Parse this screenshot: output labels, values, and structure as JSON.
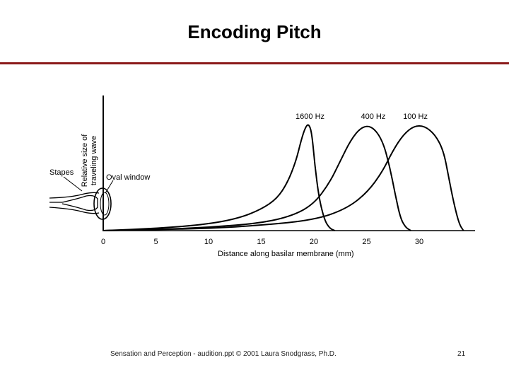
{
  "slide": {
    "title": "Encoding Pitch",
    "footer": "Sensation and Perception - audition.ppt © 2001 Laura Snodgrass, Ph.D.",
    "page_number": "21"
  },
  "colors": {
    "title_rule": "#8b1a1a",
    "ink": "#000000"
  },
  "figure_labels": {
    "stapes": "Stapes",
    "oval_window": "Oval window"
  },
  "chart_data": {
    "type": "line",
    "title": "",
    "xlabel": "Distance along basilar membrane (mm)",
    "ylabel": [
      "Relative size of",
      "traveling wave"
    ],
    "xlim": [
      0,
      35
    ],
    "ylim": [
      0,
      1
    ],
    "x_ticks": [
      0,
      5,
      10,
      15,
      20,
      25,
      30
    ],
    "grid": false,
    "series": [
      {
        "name": "1600 Hz",
        "x": [
          0,
          5,
          10,
          13,
          15,
          16.5,
          17.5,
          18.3,
          18.8,
          19.2,
          19.5,
          19.8,
          20.1,
          20.5,
          21,
          21.5,
          22
        ],
        "y": [
          0,
          0.02,
          0.06,
          0.12,
          0.2,
          0.3,
          0.45,
          0.65,
          0.85,
          0.97,
          1.0,
          0.92,
          0.6,
          0.3,
          0.1,
          0.02,
          0
        ]
      },
      {
        "name": "400 Hz",
        "x": [
          0,
          5,
          10,
          15,
          18,
          20,
          21.5,
          22.5,
          23.5,
          24.5,
          25.5,
          26.5,
          27.2,
          27.7,
          28.2,
          28.7,
          29.2
        ],
        "y": [
          0,
          0.01,
          0.03,
          0.07,
          0.14,
          0.25,
          0.45,
          0.65,
          0.85,
          0.97,
          0.98,
          0.85,
          0.6,
          0.35,
          0.12,
          0.03,
          0
        ]
      },
      {
        "name": "100 Hz",
        "x": [
          0,
          5,
          10,
          15,
          20,
          23,
          25,
          26.5,
          27.5,
          28.5,
          29.5,
          30.5,
          31.5,
          32.3,
          32.8,
          33.3,
          33.8,
          34.2
        ],
        "y": [
          0,
          0.01,
          0.02,
          0.05,
          0.1,
          0.2,
          0.35,
          0.55,
          0.75,
          0.9,
          0.98,
          0.98,
          0.9,
          0.75,
          0.5,
          0.25,
          0.06,
          0
        ]
      }
    ]
  }
}
